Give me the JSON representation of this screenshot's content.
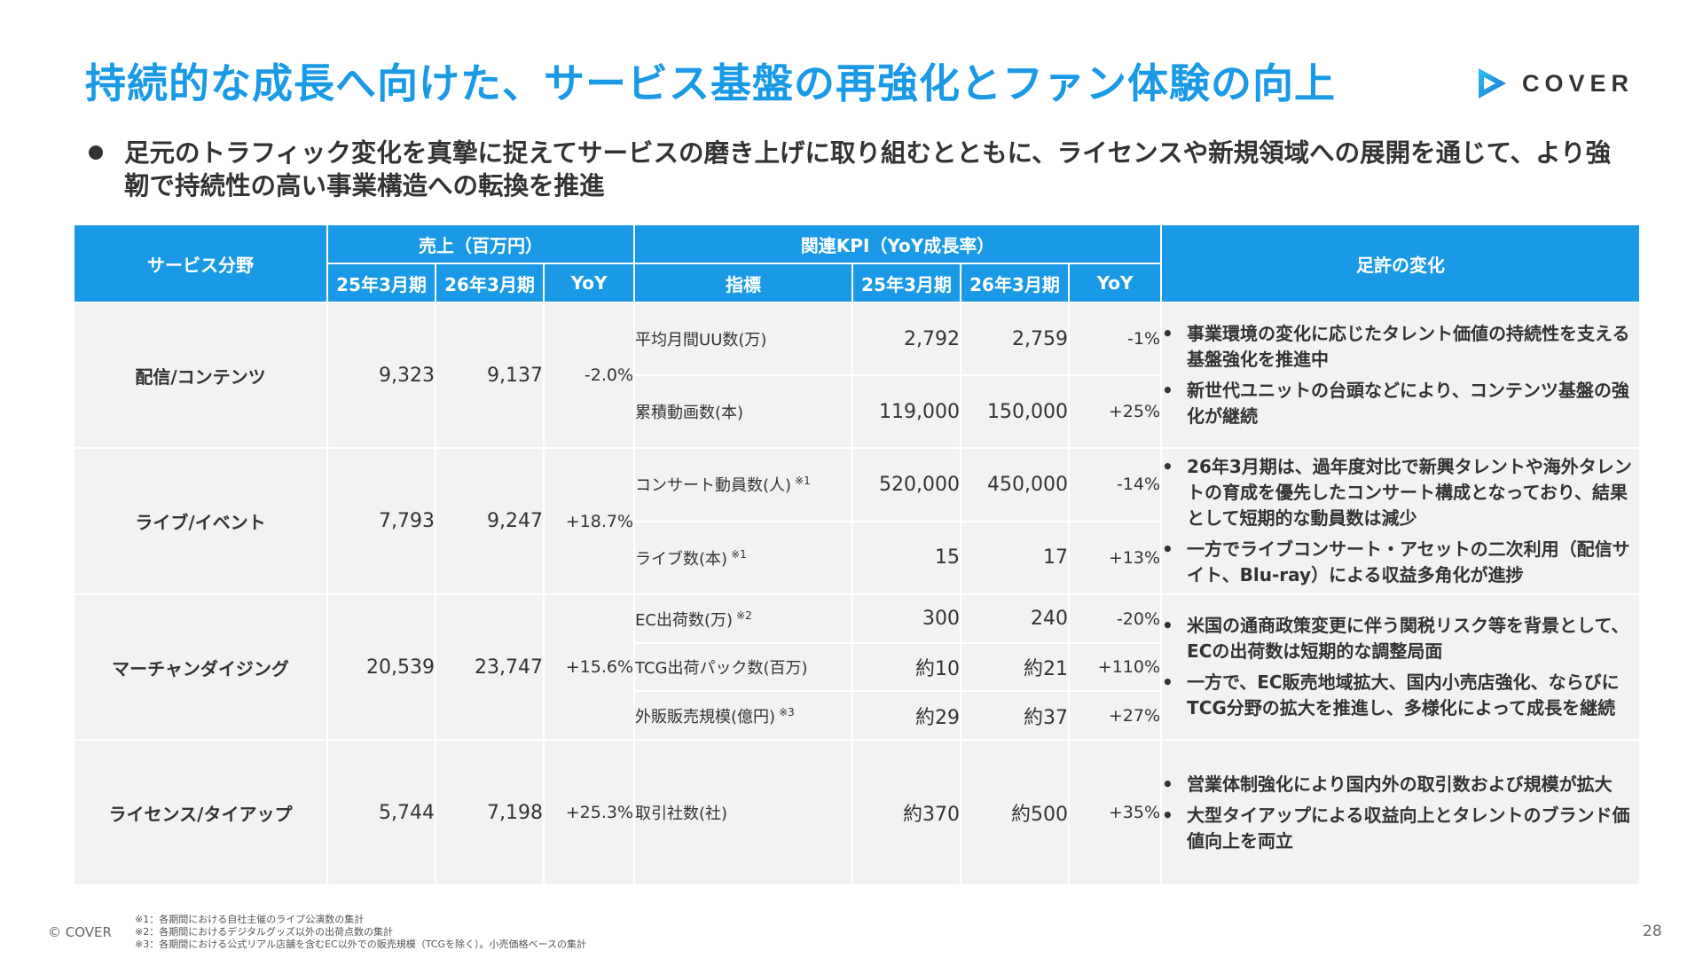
{
  "header": {
    "title": "持続的な成長へ向けた、サービス基盤の再強化とファン体験の向上",
    "logo_text": "COVER"
  },
  "lead": {
    "text": "足元のトラフィック変化を真摯に捉えてサービスの磨き上げに取り組むとともに、ライセンスや新規領域への展開を通じて、より強靭で持続性の高い事業構造への転換を推進"
  },
  "table": {
    "headers": {
      "service": "サービス分野",
      "sales": "売上（百万円）",
      "kpi": "関連KPI（YoY成長率）",
      "changes": "足許の変化",
      "fy25": "25年3月期",
      "fy26": "26年3月期",
      "yoy": "YoY",
      "indicator": "指標",
      "kpi_fy25": "25年3月期",
      "kpi_fy26": "26年3月期",
      "kpi_yoy": "YoY"
    },
    "rows": [
      {
        "service": "配信/コンテンツ",
        "fy25": "9,323",
        "fy26": "9,137",
        "yoy": "-2.0%",
        "kpis": [
          {
            "name": "平均月間UU数(万)",
            "mark": "",
            "fy25": "2,792",
            "fy26": "2,759",
            "yoy": "-1%"
          },
          {
            "name": "累積動画数(本)",
            "mark": "",
            "fy25": "119,000",
            "fy26": "150,000",
            "yoy": "+25%"
          }
        ],
        "notes": [
          "事業環境の変化に応じたタレント価値の持続性を支える基盤強化を推進中",
          "新世代ユニットの台頭などにより、コンテンツ基盤の強化が継続"
        ]
      },
      {
        "service": "ライブ/イベント",
        "fy25": "7,793",
        "fy26": "9,247",
        "yoy": "+18.7%",
        "kpis": [
          {
            "name": "コンサート動員数(人)",
            "mark": "※1",
            "fy25": "520,000",
            "fy26": "450,000",
            "yoy": "-14%"
          },
          {
            "name": "ライブ数(本)",
            "mark": "※1",
            "fy25": "15",
            "fy26": "17",
            "yoy": "+13%"
          }
        ],
        "notes": [
          "26年3月期は、過年度対比で新興タレントや海外タレントの育成を優先したコンサート構成となっており、結果として短期的な動員数は減少",
          "一方でライブコンサート・アセットの二次利用（配信サイト、Blu-ray）による収益多角化が進捗"
        ]
      },
      {
        "service": "マーチャンダイジング",
        "fy25": "20,539",
        "fy26": "23,747",
        "yoy": "+15.6%",
        "kpis": [
          {
            "name": "EC出荷数(万)",
            "mark": "※2",
            "fy25": "300",
            "fy26": "240",
            "yoy": "-20%"
          },
          {
            "name": "TCG出荷パック数(百万)",
            "mark": "",
            "fy25": "約10",
            "fy26": "約21",
            "yoy": "+110%"
          },
          {
            "name": "外販販売規模(億円)",
            "mark": "※3",
            "fy25": "約29",
            "fy26": "約37",
            "yoy": "+27%"
          }
        ],
        "notes": [
          "米国の通商政策変更に伴う関税リスク等を背景として、ECの出荷数は短期的な調整局面",
          "一方で、EC販売地域拡大、国内小売店強化、ならびにTCG分野の拡大を推進し、多様化によって成長を継続"
        ]
      },
      {
        "service": "ライセンス/タイアップ",
        "fy25": "5,744",
        "fy26": "7,198",
        "yoy": "+25.3%",
        "kpis": [
          {
            "name": "取引社数(社)",
            "mark": "",
            "fy25": "約370",
            "fy26": "約500",
            "yoy": "+35%"
          }
        ],
        "notes": [
          "営業体制強化により国内外の取引数および規模が拡大",
          "大型タイアップによる収益向上とタレントのブランド価値向上を両立"
        ]
      }
    ]
  },
  "footer": {
    "footnotes": [
      "※1：各期間における自社主催のライブ公演数の集計",
      "※2：各期間におけるデジタルグッズ以外の出荷点数の集計",
      "※3：各期間における公式リアル店舗を含むEC以外での販売規模（TCGを除く）。小売価格ベースの集計"
    ],
    "copyright": "© COVER",
    "page_number": "28"
  },
  "colors": {
    "accent": "#1a9ae6",
    "cell_bg": "#f2f2f2",
    "text": "#333333"
  },
  "icons": {
    "logo": "cover-play-triangle-icon",
    "bullet": "bullet-dot-icon"
  }
}
